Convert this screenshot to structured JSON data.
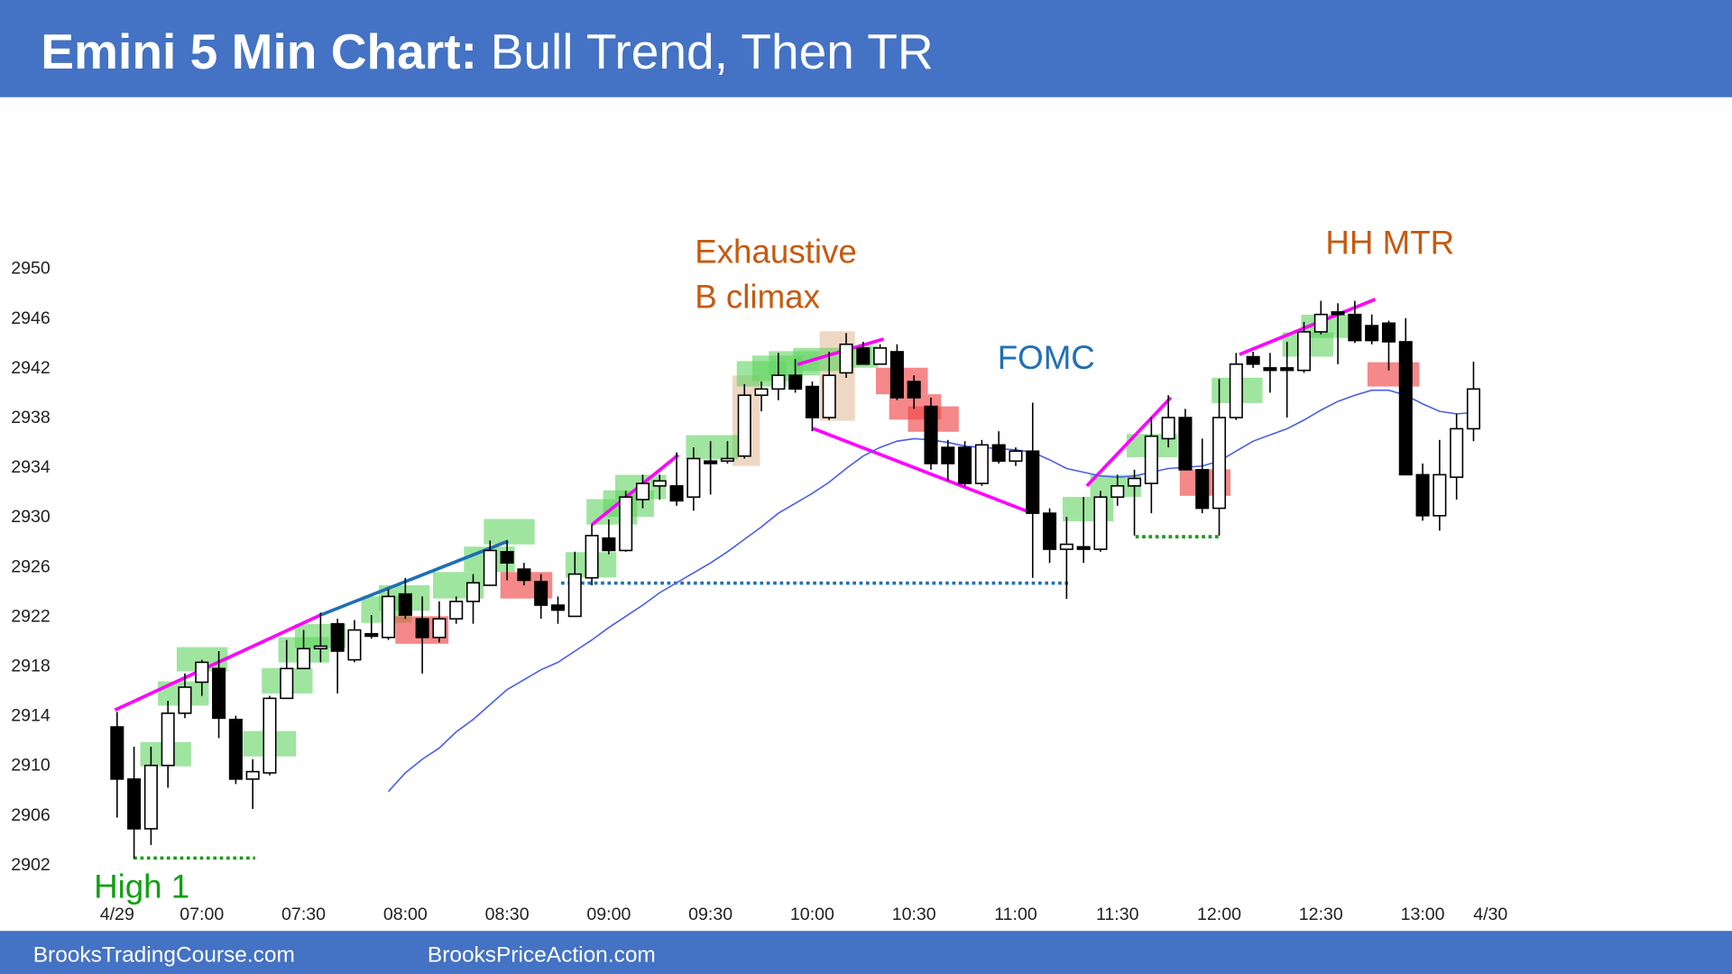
{
  "chart_data": {
    "type": "candlestick",
    "title": [
      "Emini 5 Min Chart:",
      "Bull Trend, Then TR"
    ],
    "categories": [
      "4/29",
      null,
      null,
      null,
      null,
      "07:00",
      null,
      null,
      null,
      null,
      null,
      "07:30",
      null,
      null,
      null,
      null,
      null,
      "08:00",
      null,
      null,
      null,
      null,
      null,
      "08:30",
      null,
      null,
      null,
      null,
      null,
      "09:00",
      null,
      null,
      null,
      null,
      null,
      "09:30",
      null,
      null,
      null,
      null,
      null,
      "10:00",
      null,
      null,
      null,
      null,
      null,
      "10:30",
      null,
      null,
      null,
      null,
      null,
      "11:00",
      null,
      null,
      null,
      null,
      null,
      "11:30",
      null,
      null,
      null,
      null,
      null,
      "12:00",
      null,
      null,
      null,
      null,
      null,
      "12:30",
      null,
      null,
      null,
      null,
      null,
      "13:00",
      null,
      null,
      null,
      "4/30"
    ],
    "open": [
      2913.0,
      2908.8,
      2904.8,
      2909.9,
      2914.1,
      2916.6,
      2917.7,
      2913.6,
      2908.8,
      2909.3,
      2915.3,
      2917.7,
      2919.3,
      2921.3,
      2918.4,
      2920.5,
      2920.2,
      2923.7,
      2921.7,
      2920.2,
      2921.7,
      2923.1,
      2924.4,
      2927.1,
      2925.7,
      2924.7,
      2922.8,
      2921.9,
      2925.0,
      2928.2,
      2927.2,
      2931.3,
      2932.4,
      2932.4,
      2931.5,
      2934.4,
      2934.4,
      2934.8,
      2939.7,
      2940.2,
      2941.3,
      2940.4,
      2937.9,
      2941.5,
      2943.5,
      2942.2,
      2943.2,
      2940.8,
      2938.8,
      2935.5,
      2935.5,
      2932.6,
      2935.7,
      2934.4,
      2935.2,
      2930.2,
      2927.3,
      2927.5,
      2927.3,
      2931.5,
      2932.4,
      2932.6,
      2936.2,
      2937.9,
      2933.7,
      2930.6,
      2937.9,
      2942.8,
      2941.9,
      2941.9,
      2941.7,
      2944.8,
      2946.4,
      2946.2,
      2945.3,
      2945.5,
      2944.0,
      2933.3,
      2930.0,
      2933.1,
      2937.0,
      null
    ],
    "high": [
      2914.2,
      2911.4,
      2911.4,
      2915.1,
      2917.3,
      2918.4,
      2919.1,
      2913.9,
      2910.4,
      2915.5,
      2920.0,
      2920.8,
      2922.2,
      2921.7,
      2921.6,
      2922.0,
      2924.1,
      2925.0,
      2923.5,
      2923.1,
      2923.5,
      2925.3,
      2928.0,
      2928.0,
      2926.2,
      2925.3,
      2923.5,
      2927.1,
      2929.3,
      2929.7,
      2932.0,
      2933.3,
      2933.3,
      2935.1,
      2935.5,
      2936.0,
      2936.0,
      2940.6,
      2940.8,
      2943.1,
      2942.6,
      2940.8,
      2943.2,
      2944.7,
      2944.0,
      2943.8,
      2943.8,
      2941.3,
      2939.5,
      2936.1,
      2936.0,
      2936.1,
      2936.8,
      2935.5,
      2939.1,
      2930.6,
      2929.9,
      2931.5,
      2932.0,
      2933.3,
      2933.7,
      2937.9,
      2939.7,
      2938.6,
      2936.2,
      2941.0,
      2943.1,
      2943.2,
      2943.1,
      2944.0,
      2945.6,
      2947.3,
      2947.1,
      2947.3,
      2946.2,
      2945.7,
      2945.9,
      2934.2,
      2936.1,
      2938.2,
      2942.4,
      null
    ],
    "low": [
      2905.7,
      2902.4,
      2903.5,
      2908.1,
      2913.7,
      2915.5,
      2912.1,
      2908.4,
      2906.4,
      2909.1,
      2915.3,
      2917.7,
      2918.2,
      2915.7,
      2918.2,
      2920.1,
      2920.0,
      2921.7,
      2917.3,
      2919.8,
      2921.3,
      2921.3,
      2924.4,
      2924.8,
      2924.4,
      2921.7,
      2921.3,
      2921.9,
      2924.4,
      2926.9,
      2927.1,
      2930.6,
      2931.3,
      2930.8,
      2930.4,
      2931.7,
      2934.2,
      2934.6,
      2938.4,
      2939.3,
      2939.9,
      2936.8,
      2937.7,
      2941.1,
      2942.2,
      2942.2,
      2939.3,
      2938.6,
      2933.7,
      2932.8,
      2932.4,
      2932.4,
      2934.2,
      2934.0,
      2925.0,
      2926.2,
      2923.3,
      2926.2,
      2927.1,
      2930.8,
      2928.4,
      2930.2,
      2935.5,
      2933.7,
      2930.2,
      2928.4,
      2937.7,
      2941.9,
      2939.9,
      2937.9,
      2941.5,
      2944.6,
      2942.2,
      2943.9,
      2943.8,
      2941.7,
      2933.3,
      2929.6,
      2928.8,
      2931.3,
      2936.0,
      null
    ],
    "close": [
      2908.8,
      2904.8,
      2909.9,
      2914.1,
      2916.2,
      2918.2,
      2913.7,
      2908.8,
      2909.4,
      2915.3,
      2917.7,
      2919.3,
      2919.5,
      2919.1,
      2920.8,
      2920.3,
      2923.5,
      2922.0,
      2920.2,
      2921.7,
      2923.1,
      2924.6,
      2927.2,
      2926.2,
      2924.8,
      2922.8,
      2922.4,
      2925.3,
      2928.4,
      2927.2,
      2931.5,
      2932.6,
      2932.8,
      2931.2,
      2934.6,
      2934.2,
      2934.6,
      2939.7,
      2940.2,
      2941.3,
      2940.2,
      2937.9,
      2941.3,
      2943.8,
      2942.2,
      2943.5,
      2939.5,
      2939.5,
      2934.2,
      2934.2,
      2932.6,
      2935.7,
      2934.4,
      2935.2,
      2930.2,
      2927.3,
      2927.7,
      2927.3,
      2931.5,
      2932.4,
      2933.0,
      2936.4,
      2937.9,
      2933.7,
      2930.6,
      2937.9,
      2942.2,
      2942.2,
      2941.7,
      2941.7,
      2944.8,
      2946.2,
      2946.2,
      2944.1,
      2944.1,
      2944.0,
      2933.3,
      2930.0,
      2933.3,
      2937.0,
      2940.2,
      null
    ],
    "moving_average": {
      "color": "#4a5ee8",
      "values": [
        null,
        null,
        null,
        null,
        null,
        null,
        null,
        null,
        null,
        null,
        null,
        null,
        null,
        null,
        null,
        null,
        2907.8,
        2909.3,
        2910.4,
        2911.3,
        2912.6,
        2913.6,
        2914.8,
        2916.0,
        2916.8,
        2917.6,
        2918.2,
        2919.1,
        2920.0,
        2921.0,
        2921.9,
        2922.8,
        2923.8,
        2924.6,
        2925.4,
        2926.2,
        2927.1,
        2928.1,
        2929.1,
        2930.2,
        2931.0,
        2931.8,
        2932.7,
        2933.8,
        2934.8,
        2935.5,
        2936.0,
        2936.2,
        2936.1,
        2935.9,
        2935.6,
        2935.5,
        2935.4,
        2935.3,
        2935.1,
        2934.5,
        2933.8,
        2933.5,
        2933.2,
        2933.1,
        2933.2,
        2933.5,
        2933.8,
        2933.9,
        2934.0,
        2934.4,
        2935.2,
        2936.0,
        2936.5,
        2937.0,
        2937.7,
        2938.5,
        2939.2,
        2939.7,
        2940.1,
        2940.1,
        2939.7,
        2939.0,
        2938.4,
        2938.2,
        2938.3,
        null
      ]
    },
    "ylim": [
      2902,
      2950
    ],
    "yticks": [
      2902,
      2906,
      2910,
      2914,
      2918,
      2922,
      2926,
      2930,
      2934,
      2938,
      2942,
      2946,
      2950
    ],
    "up_color": "#ffffff",
    "down_color": "#000000",
    "annotations": [
      "Exhaustive",
      "B climax",
      "FOMC",
      "HH MTR",
      "High 1"
    ],
    "footer": [
      "BrooksTradingCourse.com",
      "BrooksPriceAction.com"
    ]
  }
}
